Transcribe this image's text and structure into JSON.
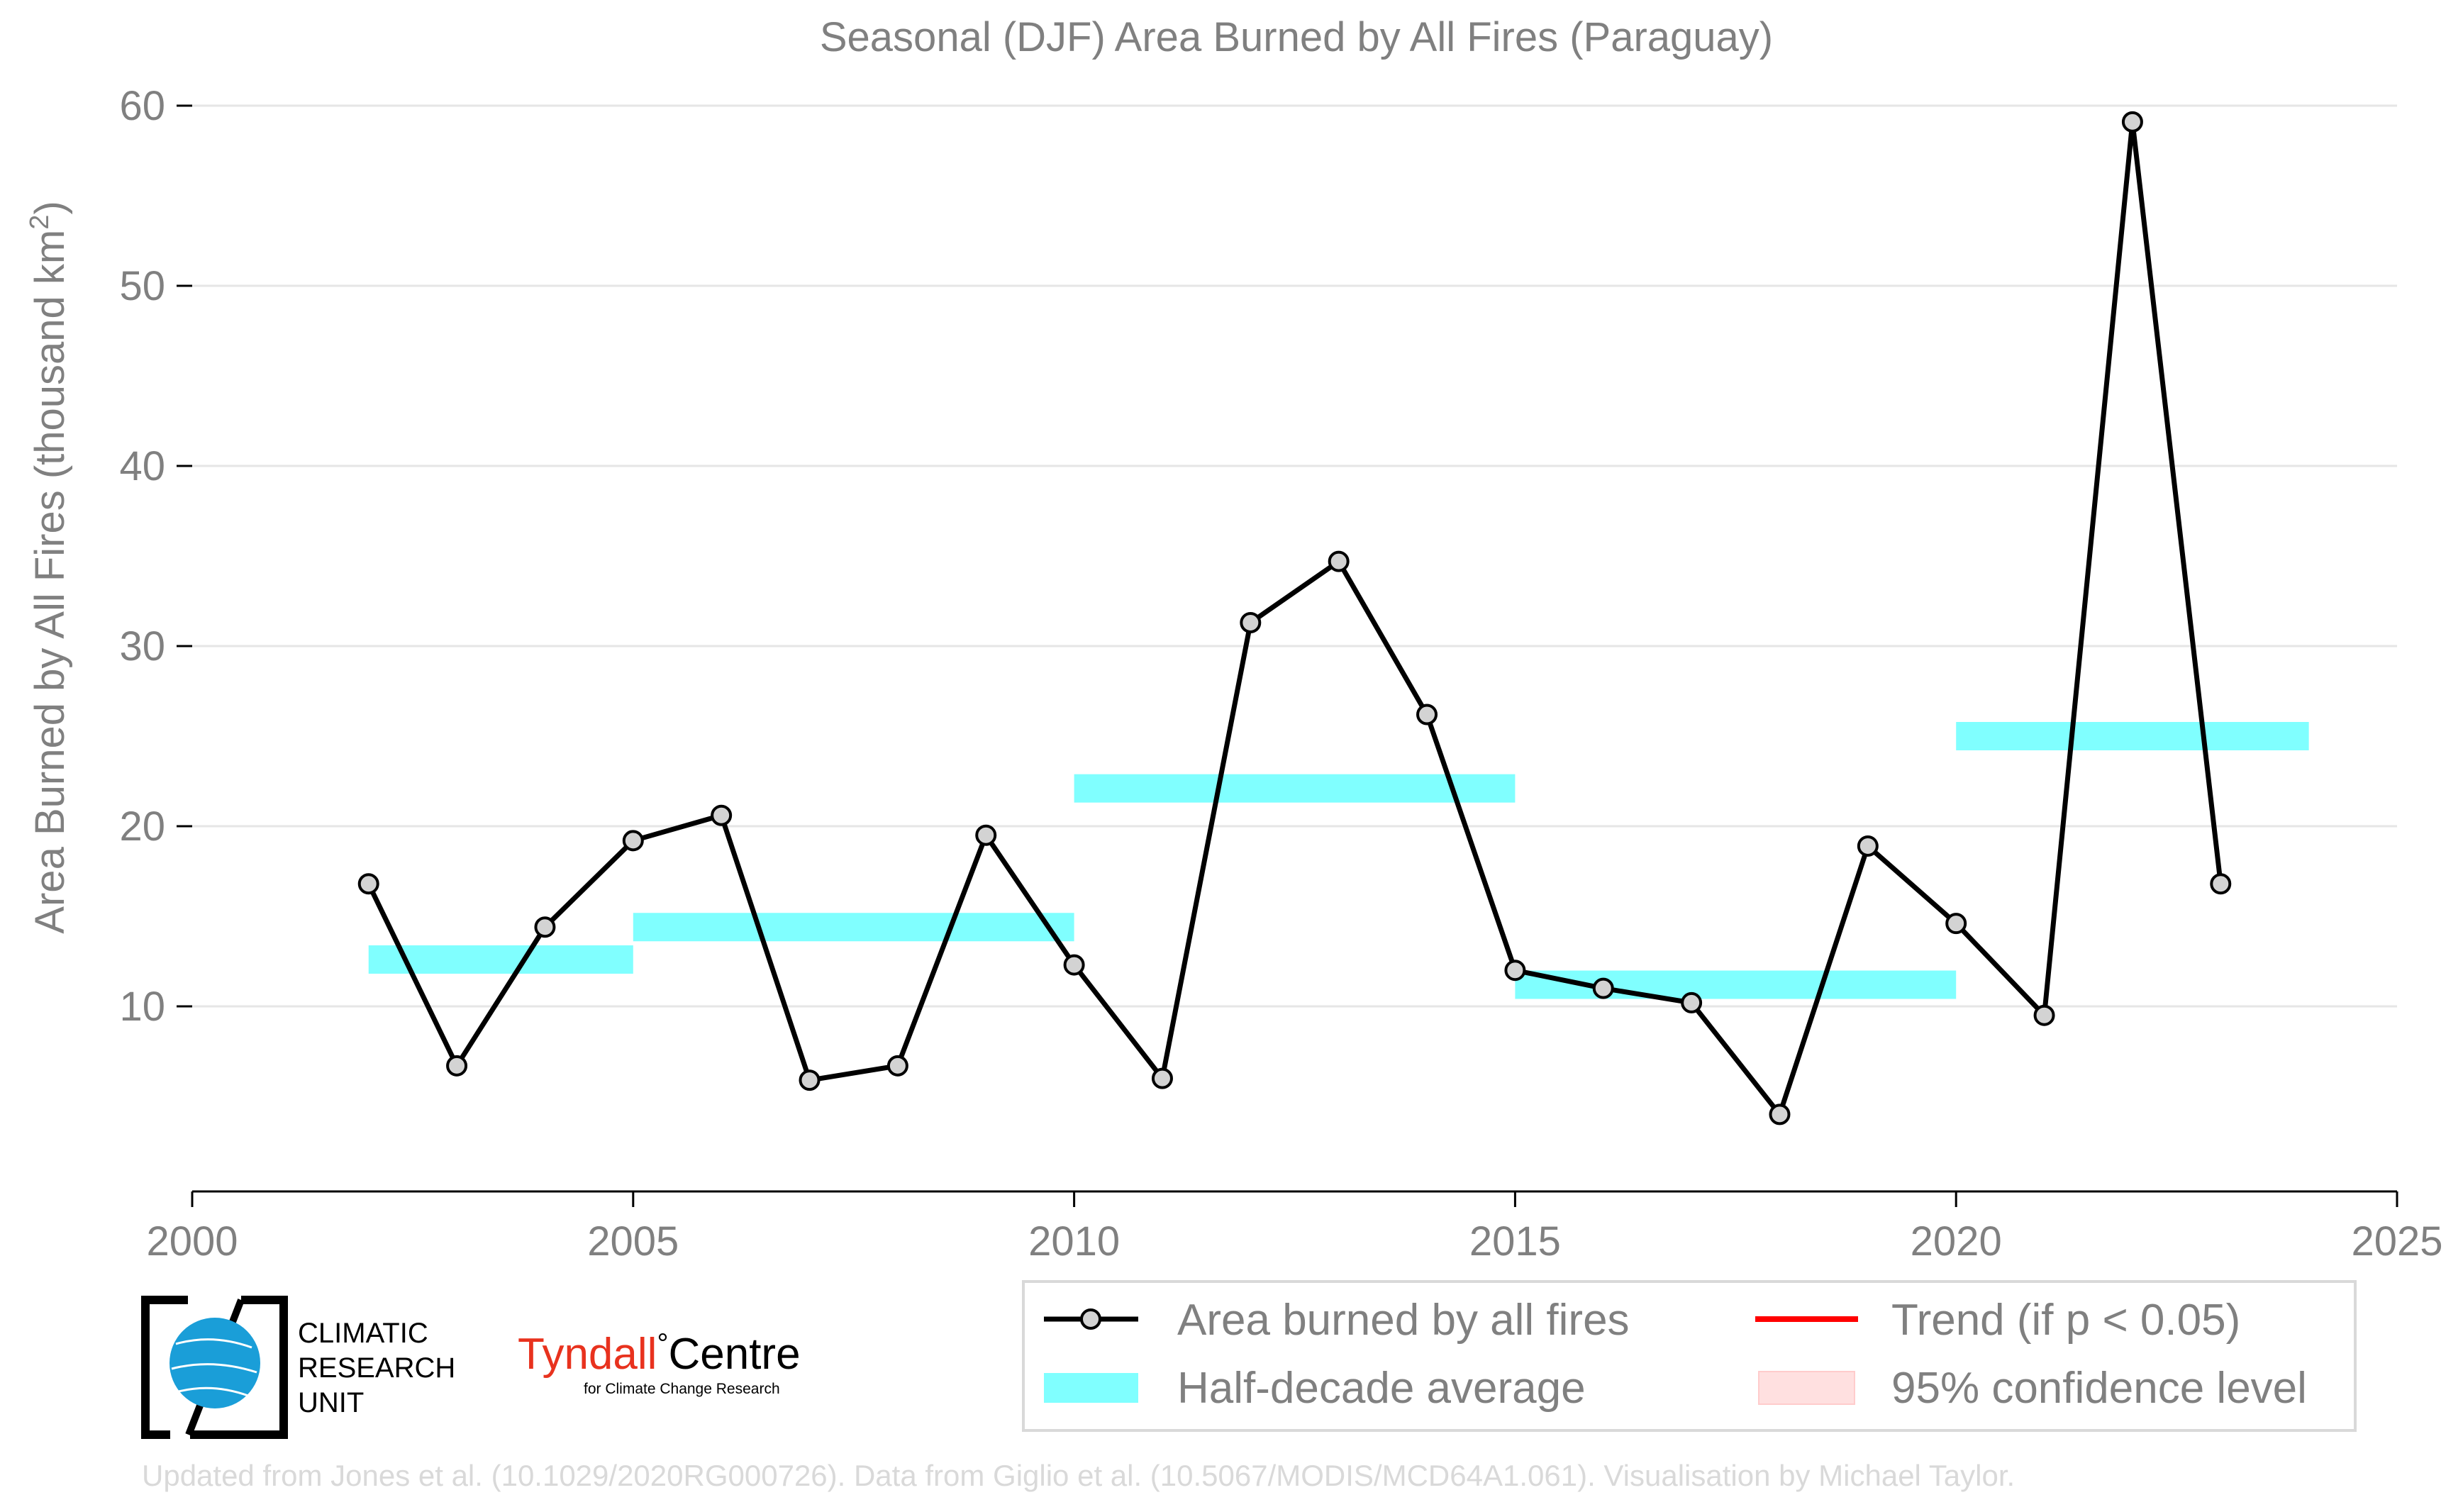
{
  "chart_data": {
    "type": "line",
    "title": "Seasonal (DJF) Area Burned by All Fires (Paraguay)",
    "ylabel_main": "Area Burned by All Fires (thousand km",
    "ylabel_sup": "2",
    "ylabel_close": ")",
    "xlabel": "",
    "xlim": [
      2000,
      2025
    ],
    "ylim": [
      0,
      60
    ],
    "xticks": [
      2000,
      2005,
      2010,
      2015,
      2020,
      2025
    ],
    "yticks": [
      10,
      20,
      30,
      40,
      50,
      60
    ],
    "grid": "horizontal",
    "legend_placement": "bottom-right",
    "series": [
      {
        "name": "Area burned by all fires",
        "color": "#000000",
        "marker_fill": "#d3d3d3",
        "x": [
          2002,
          2003,
          2004,
          2005,
          2006,
          2007,
          2008,
          2009,
          2010,
          2011,
          2012,
          2013,
          2014,
          2015,
          2016,
          2017,
          2018,
          2019,
          2020,
          2021,
          2022,
          2023
        ],
        "y": [
          16.8,
          6.7,
          14.4,
          19.2,
          20.6,
          5.9,
          6.7,
          19.5,
          12.3,
          6.0,
          31.3,
          34.7,
          26.2,
          12.0,
          11.0,
          10.2,
          4.0,
          18.9,
          14.6,
          9.5,
          59.1,
          16.8
        ]
      }
    ],
    "half_decade_average": {
      "name": "Half-decade average",
      "color": "#80ffff",
      "segments": [
        {
          "x0": 2002,
          "x1": 2005,
          "y": 12.6
        },
        {
          "x0": 2005,
          "x1": 2010,
          "y": 14.4
        },
        {
          "x0": 2010,
          "x1": 2015,
          "y": 22.1
        },
        {
          "x0": 2015,
          "x1": 2020,
          "y": 11.2
        },
        {
          "x0": 2020,
          "x1": 2024,
          "y": 25.0
        }
      ]
    },
    "legend": [
      {
        "label": "Area burned by all fires",
        "kind": "line-marker",
        "color": "#000000"
      },
      {
        "label": "Trend (if p < 0.05)",
        "kind": "line",
        "color": "#ff0000"
      },
      {
        "label": "Half-decade average",
        "kind": "patch",
        "color": "#80ffff"
      },
      {
        "label": "95% confidence level",
        "kind": "patch",
        "color": "#ffe0e0"
      }
    ]
  },
  "logos": {
    "cru_lines": [
      "CLIMATIC",
      "RESEARCH",
      "UNIT"
    ],
    "tyndall_name": "Tyndall",
    "tyndall_degree": "°",
    "tyndall_centre": "Centre",
    "tyndall_sub": "for Climate Change Research",
    "tyndall_color": "#e8321e"
  },
  "credit": "Updated from Jones et al. (10.1029/2020RG000726). Data from Giglio et al. (10.5067/MODIS/MCD64A1.061). Visualisation by Michael Taylor."
}
